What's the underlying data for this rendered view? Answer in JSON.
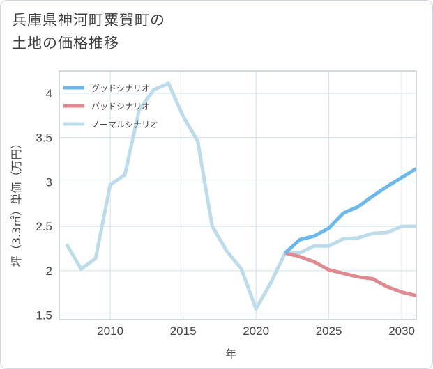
{
  "title_line1": "兵庫県神河町粟賀町の",
  "title_line2": "土地の価格推移",
  "chart_data": {
    "type": "line",
    "xlabel": "年",
    "ylabel": "坪（3.3㎡）単価（万円）",
    "xlim": [
      2006.5,
      2031
    ],
    "ylim": [
      1.45,
      4.25
    ],
    "xticks": [
      2010,
      2015,
      2020,
      2025,
      2030
    ],
    "yticks": [
      1.5,
      2,
      2.5,
      3,
      3.5,
      4
    ],
    "grid": true,
    "legend_position": "top-left",
    "series": [
      {
        "name": "グッドシナリオ",
        "color": "#6bb8ec",
        "x": [
          2022,
          2023,
          2024,
          2025,
          2026,
          2027,
          2028,
          2029,
          2030,
          2031
        ],
        "y": [
          2.2,
          2.35,
          2.39,
          2.48,
          2.65,
          2.72,
          2.84,
          2.95,
          3.05,
          3.15
        ]
      },
      {
        "name": "バッドシナリオ",
        "color": "#e0898f",
        "x": [
          2022,
          2023,
          2024,
          2025,
          2026,
          2027,
          2028,
          2029,
          2030,
          2031
        ],
        "y": [
          2.2,
          2.16,
          2.1,
          2.01,
          1.97,
          1.93,
          1.91,
          1.82,
          1.76,
          1.72
        ]
      },
      {
        "name": "ノーマルシナリオ",
        "color": "#bcdcec",
        "x": [
          2007,
          2008,
          2009,
          2010,
          2011,
          2012,
          2013,
          2014,
          2015,
          2016,
          2017,
          2018,
          2019,
          2020,
          2021,
          2022,
          2023,
          2024,
          2025,
          2026,
          2027,
          2028,
          2029,
          2030,
          2031
        ],
        "y": [
          2.3,
          2.02,
          2.14,
          2.97,
          3.08,
          3.82,
          4.04,
          4.11,
          3.74,
          3.46,
          2.5,
          2.22,
          2.02,
          1.57,
          1.86,
          2.2,
          2.2,
          2.28,
          2.28,
          2.36,
          2.37,
          2.42,
          2.43,
          2.5,
          2.5
        ]
      }
    ]
  }
}
